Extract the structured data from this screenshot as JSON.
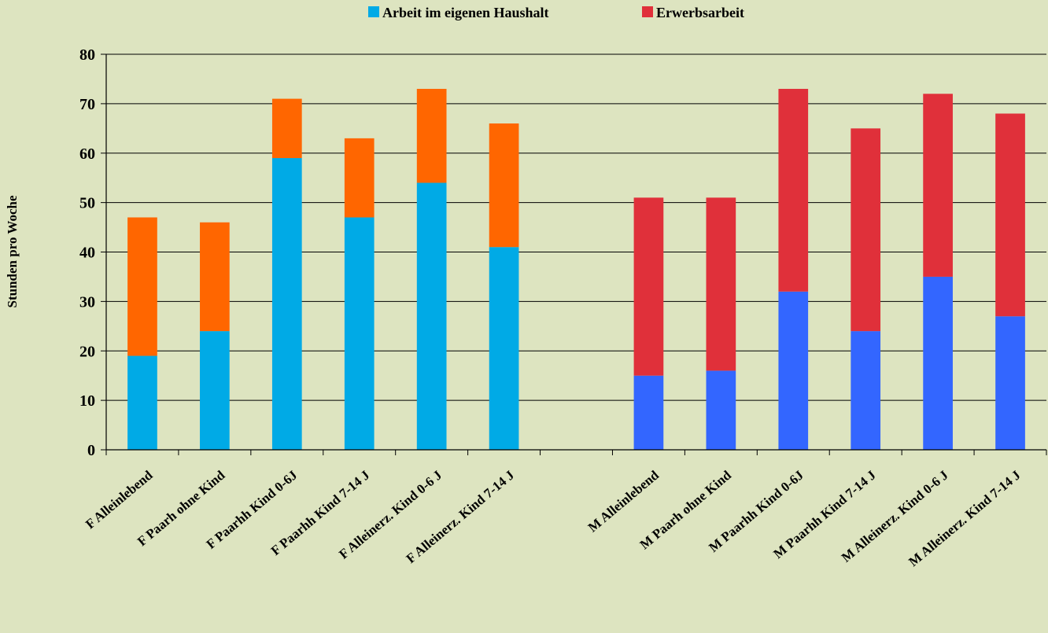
{
  "chart_data": {
    "type": "bar",
    "stacked": true,
    "ylabel": "Stunden pro Woche",
    "ylim": [
      0,
      80
    ],
    "yticks": [
      0,
      10,
      20,
      30,
      40,
      50,
      60,
      70,
      80
    ],
    "grid": true,
    "legend_position": "top-center",
    "legend": [
      {
        "label": "Arbeit im eigenen Haushalt",
        "color": "#00aae6"
      },
      {
        "label": "Erwerbsarbeit",
        "color": "#e0303a"
      }
    ],
    "categories": [
      "F Alleinlebend",
      "F Paarh ohne Kind",
      "F Paarhh Kind 0-6J",
      "F Paarhh Kind 7-14 J",
      "F Alleinerz. Kind 0-6 J",
      "F Alleinerz. Kind 7-14 J",
      "",
      "M Alleinlebend",
      "M Paarh ohne Kind",
      "M Paarhh Kind 0-6J",
      "M Paarhh Kind 7-14 J",
      "M Alleinerz. Kind 0-6 J",
      "M Alleinerz. Kind 7-14 J"
    ],
    "series": [
      {
        "name": "Arbeit im eigenen Haushalt",
        "values": [
          19,
          24,
          59,
          47,
          54,
          41,
          null,
          15,
          16,
          32,
          24,
          35,
          27
        ],
        "colors": [
          "#00aae6",
          "#00aae6",
          "#00aae6",
          "#00aae6",
          "#00aae6",
          "#00aae6",
          null,
          "#3366ff",
          "#3366ff",
          "#3366ff",
          "#3366ff",
          "#3366ff",
          "#3366ff"
        ]
      },
      {
        "name": "Erwerbsarbeit",
        "values": [
          28,
          22,
          12,
          16,
          19,
          25,
          null,
          36,
          35,
          41,
          41,
          37,
          41
        ],
        "colors": [
          "#ff6600",
          "#ff6600",
          "#ff6600",
          "#ff6600",
          "#ff6600",
          "#ff6600",
          null,
          "#e0303a",
          "#e0303a",
          "#e0303a",
          "#e0303a",
          "#e0303a",
          "#e0303a"
        ]
      }
    ]
  }
}
